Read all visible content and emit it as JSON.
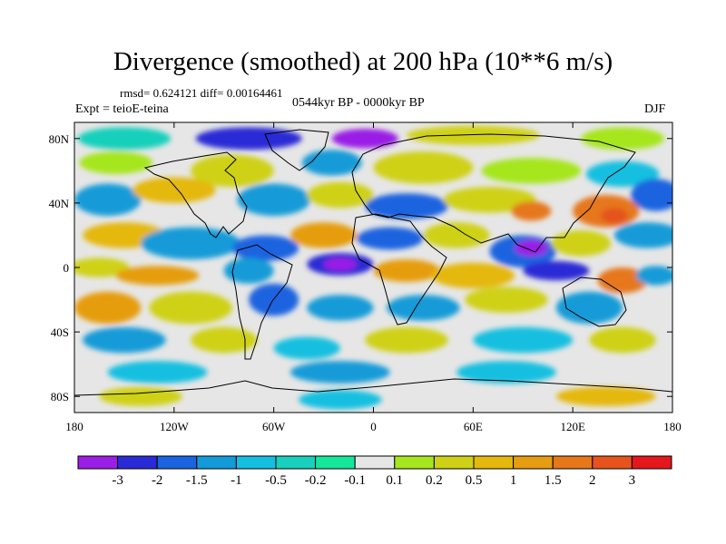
{
  "title": "Divergence (smoothed) at 200 hPa (10**6 m/s)",
  "stats_line": "rmsd= 0.624121 diff= 0.00164461",
  "period": "0544kyr BP - 0000kyr BP",
  "experiment": "Expt = teioE-teina",
  "season": "DJF",
  "map": {
    "lon_range": [
      -180,
      180
    ],
    "lat_range": [
      -90,
      90
    ],
    "x_ticks": [
      {
        "lon": -180,
        "label": "180"
      },
      {
        "lon": -120,
        "label": "120W"
      },
      {
        "lon": -60,
        "label": "60W"
      },
      {
        "lon": 0,
        "label": "0"
      },
      {
        "lon": 60,
        "label": "60E"
      },
      {
        "lon": 120,
        "label": "120E"
      },
      {
        "lon": 180,
        "label": "180"
      }
    ],
    "y_ticks": [
      {
        "lat": 80,
        "label": "80N"
      },
      {
        "lat": 40,
        "label": "40N"
      },
      {
        "lat": 0,
        "label": "0"
      },
      {
        "lat": -40,
        "label": "40S"
      },
      {
        "lat": -80,
        "label": "80S"
      }
    ],
    "background_color": "#e6e6e6",
    "field_blobs": [
      {
        "lon": -150,
        "lat": 80,
        "rlon": 28,
        "rlat": 7,
        "level": 5
      },
      {
        "lon": -75,
        "lat": 80,
        "rlon": 32,
        "rlat": 7,
        "level": 1
      },
      {
        "lon": -5,
        "lat": 80,
        "rlon": 20,
        "rlat": 6,
        "level": 0
      },
      {
        "lon": 60,
        "lat": 82,
        "rlon": 40,
        "rlat": 6,
        "level": 9
      },
      {
        "lon": 150,
        "lat": 80,
        "rlon": 25,
        "rlat": 7,
        "level": 8
      },
      {
        "lon": -155,
        "lat": 65,
        "rlon": 22,
        "rlat": 7,
        "level": 8
      },
      {
        "lon": -85,
        "lat": 60,
        "rlon": 25,
        "rlat": 10,
        "level": 9
      },
      {
        "lon": -25,
        "lat": 65,
        "rlon": 18,
        "rlat": 8,
        "level": 3
      },
      {
        "lon": 30,
        "lat": 62,
        "rlon": 30,
        "rlat": 10,
        "level": 9
      },
      {
        "lon": 95,
        "lat": 60,
        "rlon": 30,
        "rlat": 8,
        "level": 8
      },
      {
        "lon": 150,
        "lat": 58,
        "rlon": 22,
        "rlat": 8,
        "level": 4
      },
      {
        "lon": -160,
        "lat": 42,
        "rlon": 20,
        "rlat": 10,
        "level": 3
      },
      {
        "lon": -120,
        "lat": 48,
        "rlon": 25,
        "rlat": 8,
        "level": 10
      },
      {
        "lon": -60,
        "lat": 42,
        "rlon": 22,
        "rlat": 10,
        "level": 3
      },
      {
        "lon": -20,
        "lat": 45,
        "rlon": 20,
        "rlat": 8,
        "level": 9
      },
      {
        "lon": 20,
        "lat": 38,
        "rlon": 25,
        "rlat": 8,
        "level": 2
      },
      {
        "lon": 70,
        "lat": 42,
        "rlon": 28,
        "rlat": 8,
        "level": 9
      },
      {
        "lon": 95,
        "lat": 35,
        "rlon": 12,
        "rlat": 6,
        "level": 12
      },
      {
        "lon": 140,
        "lat": 35,
        "rlon": 20,
        "rlat": 10,
        "level": 12
      },
      {
        "lon": 145,
        "lat": 32,
        "rlon": 8,
        "rlat": 5,
        "level": 13
      },
      {
        "lon": 170,
        "lat": 45,
        "rlon": 15,
        "rlat": 10,
        "level": 2
      },
      {
        "lon": -150,
        "lat": 20,
        "rlon": 25,
        "rlat": 8,
        "level": 10
      },
      {
        "lon": -110,
        "lat": 15,
        "rlon": 30,
        "rlat": 10,
        "level": 3
      },
      {
        "lon": -65,
        "lat": 12,
        "rlon": 20,
        "rlat": 8,
        "level": 2
      },
      {
        "lon": -30,
        "lat": 20,
        "rlon": 20,
        "rlat": 8,
        "level": 11
      },
      {
        "lon": 10,
        "lat": 18,
        "rlon": 20,
        "rlat": 7,
        "level": 2
      },
      {
        "lon": 50,
        "lat": 20,
        "rlon": 20,
        "rlat": 8,
        "level": 9
      },
      {
        "lon": 90,
        "lat": 10,
        "rlon": 20,
        "rlat": 10,
        "level": 2
      },
      {
        "lon": 95,
        "lat": 12,
        "rlon": 10,
        "rlat": 5,
        "level": 0
      },
      {
        "lon": 125,
        "lat": 15,
        "rlon": 18,
        "rlat": 8,
        "level": 9
      },
      {
        "lon": 165,
        "lat": 20,
        "rlon": 20,
        "rlat": 8,
        "level": 3
      },
      {
        "lon": -165,
        "lat": 0,
        "rlon": 18,
        "rlat": 6,
        "level": 9
      },
      {
        "lon": -130,
        "lat": -5,
        "rlon": 25,
        "rlat": 6,
        "level": 11
      },
      {
        "lon": -75,
        "lat": -2,
        "rlon": 15,
        "rlat": 8,
        "level": 3
      },
      {
        "lon": -20,
        "lat": 2,
        "rlon": 20,
        "rlat": 7,
        "level": 1
      },
      {
        "lon": -20,
        "lat": 2,
        "rlon": 10,
        "rlat": 4,
        "level": 0
      },
      {
        "lon": 20,
        "lat": -2,
        "rlon": 20,
        "rlat": 7,
        "level": 11
      },
      {
        "lon": 60,
        "lat": -5,
        "rlon": 25,
        "rlat": 8,
        "level": 10
      },
      {
        "lon": 110,
        "lat": -2,
        "rlon": 20,
        "rlat": 6,
        "level": 1
      },
      {
        "lon": 150,
        "lat": -8,
        "rlon": 15,
        "rlat": 8,
        "level": 12
      },
      {
        "lon": 170,
        "lat": -5,
        "rlon": 12,
        "rlat": 6,
        "level": 3
      },
      {
        "lon": -160,
        "lat": -25,
        "rlon": 20,
        "rlat": 10,
        "level": 11
      },
      {
        "lon": -110,
        "lat": -25,
        "rlon": 25,
        "rlat": 10,
        "level": 9
      },
      {
        "lon": -60,
        "lat": -20,
        "rlon": 15,
        "rlat": 10,
        "level": 2
      },
      {
        "lon": -20,
        "lat": -25,
        "rlon": 20,
        "rlat": 8,
        "level": 3
      },
      {
        "lon": 30,
        "lat": -25,
        "rlon": 22,
        "rlat": 8,
        "level": 3
      },
      {
        "lon": 80,
        "lat": -20,
        "rlon": 25,
        "rlat": 8,
        "level": 9
      },
      {
        "lon": 130,
        "lat": -25,
        "rlon": 20,
        "rlat": 10,
        "level": 3
      },
      {
        "lon": -150,
        "lat": -45,
        "rlon": 25,
        "rlat": 8,
        "level": 3
      },
      {
        "lon": -90,
        "lat": -45,
        "rlon": 20,
        "rlat": 8,
        "level": 9
      },
      {
        "lon": -40,
        "lat": -50,
        "rlon": 20,
        "rlat": 7,
        "level": 4
      },
      {
        "lon": 20,
        "lat": -45,
        "rlon": 25,
        "rlat": 8,
        "level": 9
      },
      {
        "lon": 90,
        "lat": -45,
        "rlon": 30,
        "rlat": 8,
        "level": 4
      },
      {
        "lon": 150,
        "lat": -45,
        "rlon": 20,
        "rlat": 8,
        "level": 9
      },
      {
        "lon": -130,
        "lat": -65,
        "rlon": 30,
        "rlat": 7,
        "level": 4
      },
      {
        "lon": -20,
        "lat": -65,
        "rlon": 30,
        "rlat": 7,
        "level": 3
      },
      {
        "lon": 80,
        "lat": -65,
        "rlon": 30,
        "rlat": 7,
        "level": 4
      },
      {
        "lon": -140,
        "lat": -80,
        "rlon": 25,
        "rlat": 6,
        "level": 9
      },
      {
        "lon": -20,
        "lat": -82,
        "rlon": 25,
        "rlat": 6,
        "level": 4
      },
      {
        "lon": 140,
        "lat": -80,
        "rlon": 30,
        "rlat": 6,
        "level": 10
      }
    ]
  },
  "colorbar": {
    "colors": [
      "#9a1ee6",
      "#2a2ad6",
      "#1a64e0",
      "#129bd8",
      "#16bfe0",
      "#18d0bb",
      "#16e69a",
      "#e6e6e6",
      "#a6e61e",
      "#cfd116",
      "#e5b80d",
      "#e69d11",
      "#e6771b",
      "#e6531c",
      "#e3171c"
    ],
    "labels": [
      "-3",
      "-2",
      "-1.5",
      "-1",
      "-0.5",
      "-0.2",
      "-0.1",
      "0.1",
      "0.2",
      "0.5",
      "1",
      "1.5",
      "2",
      "3"
    ]
  }
}
